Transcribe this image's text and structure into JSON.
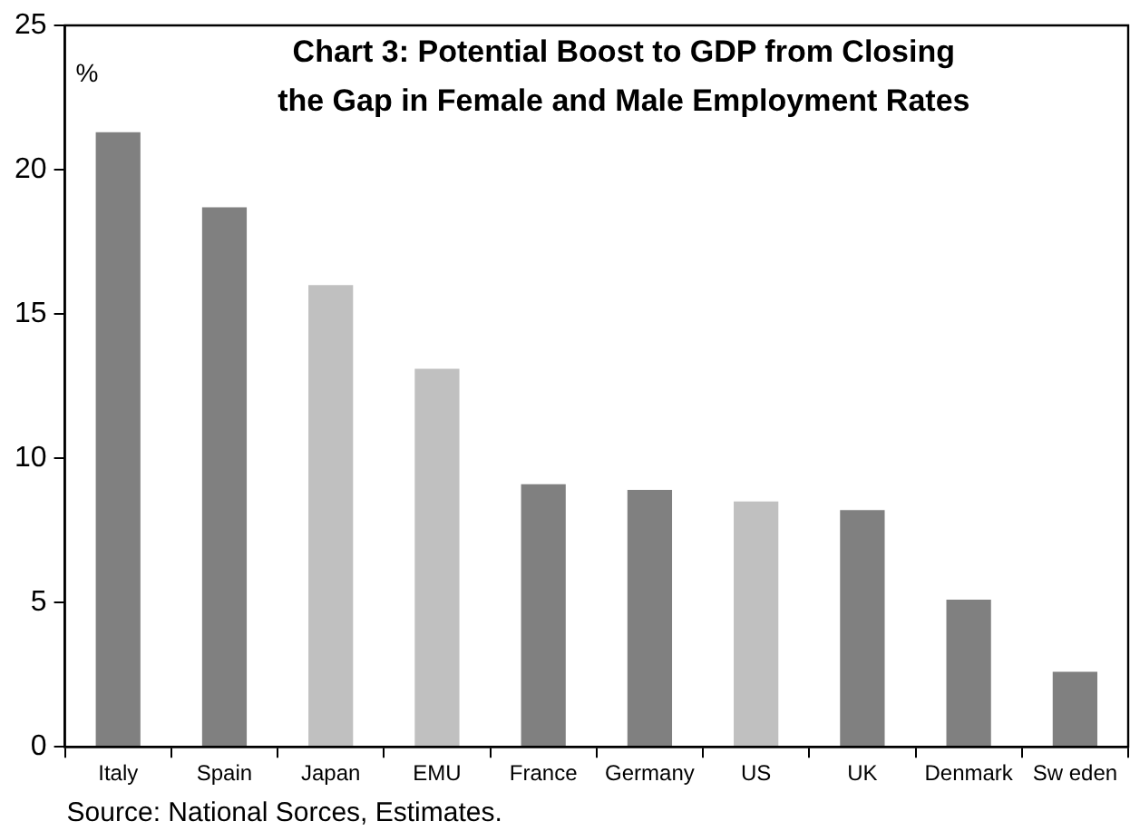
{
  "chart_data": {
    "type": "bar",
    "title": "Chart 3: Potential Boost to GDP from Closing\nthe Gap in Female and Male Employment Rates",
    "ylabel": "%",
    "categories": [
      "Italy",
      "Spain",
      "Japan",
      "EMU",
      "France",
      "Germany",
      "US",
      "UK",
      "Denmark",
      "Sw eden"
    ],
    "values": [
      21.3,
      18.7,
      16.0,
      13.1,
      9.1,
      8.9,
      8.5,
      8.2,
      5.1,
      2.6
    ],
    "colors": [
      "#808080",
      "#808080",
      "#c0c0c0",
      "#c0c0c0",
      "#808080",
      "#808080",
      "#c0c0c0",
      "#808080",
      "#808080",
      "#808080"
    ],
    "ylim": [
      0,
      25
    ],
    "yticks": [
      0,
      5,
      10,
      15,
      20,
      25
    ],
    "grid": false,
    "legend": false,
    "annotations": [
      "Source: National Sorces, Estimates."
    ]
  }
}
